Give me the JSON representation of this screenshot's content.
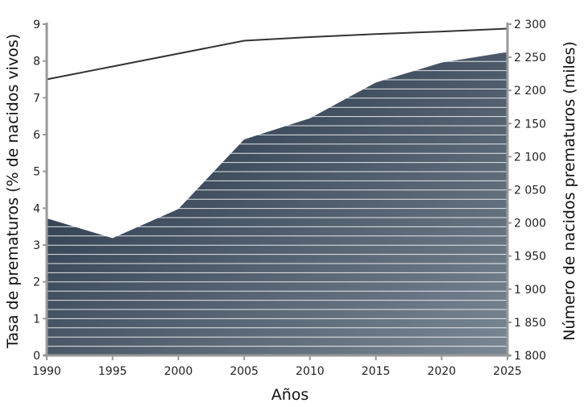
{
  "chart_data": {
    "type": "area",
    "xlabel": "Años",
    "ylabel_left": "Tasa de prematuros (% de nacidos vivos)",
    "ylabel_right": "Número de nacidos prematuros (miles)",
    "x": [
      1990,
      1995,
      2000,
      2005,
      2010,
      2015,
      2020,
      2025
    ],
    "x_ticks": [
      "1990",
      "1995",
      "2000",
      "2005",
      "2010",
      "2015",
      "2020",
      "2025"
    ],
    "ylim_left": [
      0,
      9
    ],
    "ylim_right": [
      1800,
      2300
    ],
    "y_ticks_left": [
      "0",
      "1",
      "2",
      "3",
      "4",
      "5",
      "6",
      "7",
      "8",
      "9"
    ],
    "y_ticks_right": [
      "1 800",
      "1 850",
      "1 900",
      "1 950",
      "2 000",
      "2 050",
      "2 100",
      "2 150",
      "2 200",
      "2 250",
      "2 300"
    ],
    "series": [
      {
        "type": "area",
        "axis": "right",
        "values": [
          2007,
          1977,
          2021,
          2126,
          2158,
          2212,
          2242,
          2258
        ]
      },
      {
        "type": "line",
        "axis": "left",
        "values": [
          7.5,
          7.85,
          8.2,
          8.55,
          8.65,
          8.73,
          8.8,
          8.88
        ]
      }
    ],
    "colors": {
      "area_dark": "#1b2a3d",
      "area_light": "#7a8794",
      "line": "#333333",
      "axis": "#999999"
    }
  }
}
